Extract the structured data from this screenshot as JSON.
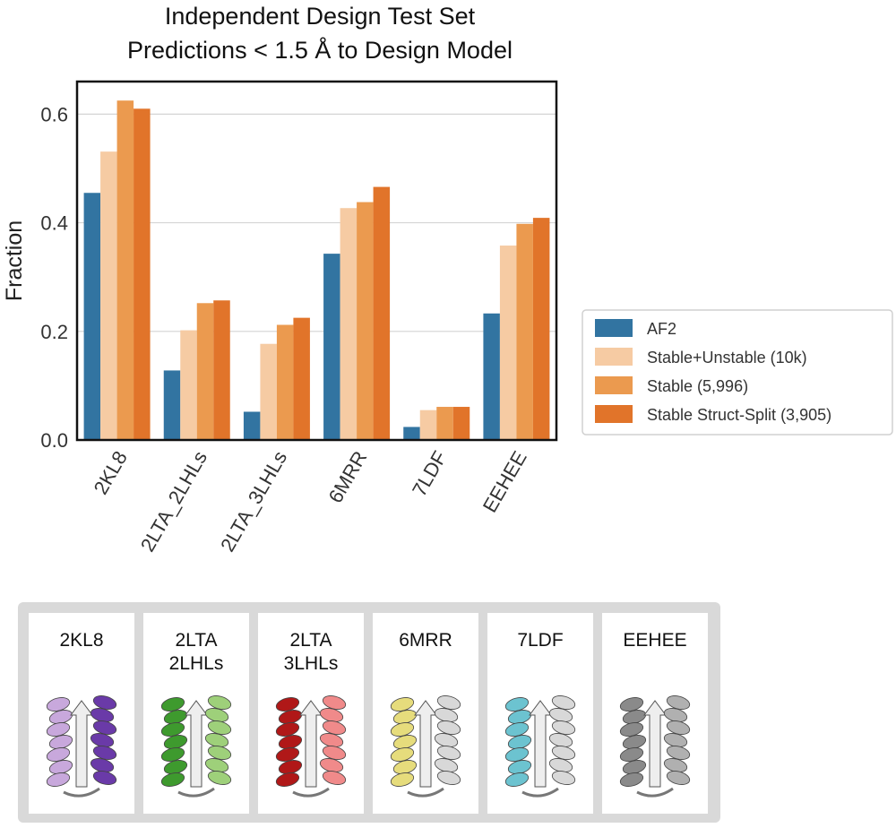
{
  "chart_data": {
    "type": "bar",
    "title": [
      "Independent Design Test Set",
      "Predictions < 1.5 Å to Design Model"
    ],
    "xlabel": "",
    "ylabel": "Fraction",
    "ylim": [
      0,
      0.66
    ],
    "yticks": [
      0.0,
      0.2,
      0.4,
      0.6
    ],
    "ytick_labels": [
      "0.0",
      "0.2",
      "0.4",
      "0.6"
    ],
    "grid": "horizontal",
    "legend_position": "right",
    "categories": [
      "2KL8",
      "2LTA_2LHLs",
      "2LTA_3LHLs",
      "6MRR",
      "7LDF",
      "EEHEE"
    ],
    "series": [
      {
        "name": "AF2",
        "color": "#3274a1",
        "values": [
          0.455,
          0.128,
          0.052,
          0.343,
          0.024,
          0.233
        ]
      },
      {
        "name": "Stable+Unstable (10k)",
        "color": "#f6cba3",
        "values": [
          0.531,
          0.202,
          0.177,
          0.427,
          0.055,
          0.358
        ]
      },
      {
        "name": "Stable (5,996)",
        "color": "#eb9a4f",
        "values": [
          0.625,
          0.252,
          0.212,
          0.438,
          0.061,
          0.398
        ]
      },
      {
        "name": "Stable Struct-Split (3,905)",
        "color": "#e1742a",
        "values": [
          0.61,
          0.257,
          0.225,
          0.466,
          0.061,
          0.409
        ]
      }
    ]
  },
  "structures": [
    {
      "lines": [
        "2KL8"
      ],
      "icon": "protein-2kl8-icon",
      "color_a": "#c8a8dc",
      "color_b": "#6a3aa8"
    },
    {
      "lines": [
        "2LTA",
        "2LHLs"
      ],
      "icon": "protein-2lta-2lhls-icon",
      "color_a": "#3e9a2e",
      "color_b": "#9ed07a"
    },
    {
      "lines": [
        "2LTA",
        "3LHLs"
      ],
      "icon": "protein-2lta-3lhls-icon",
      "color_a": "#b01818",
      "color_b": "#f08a8a"
    },
    {
      "lines": [
        "6MRR"
      ],
      "icon": "protein-6mrr-icon",
      "color_a": "#e6dc7c",
      "color_b": "#d8d8d8"
    },
    {
      "lines": [
        "7LDF"
      ],
      "icon": "protein-7ldf-icon",
      "color_a": "#6cc3d0",
      "color_b": "#d8d8d8"
    },
    {
      "lines": [
        "EEHEE"
      ],
      "icon": "protein-eehee-icon",
      "color_a": "#8a8a8a",
      "color_b": "#b0b0b0"
    }
  ]
}
